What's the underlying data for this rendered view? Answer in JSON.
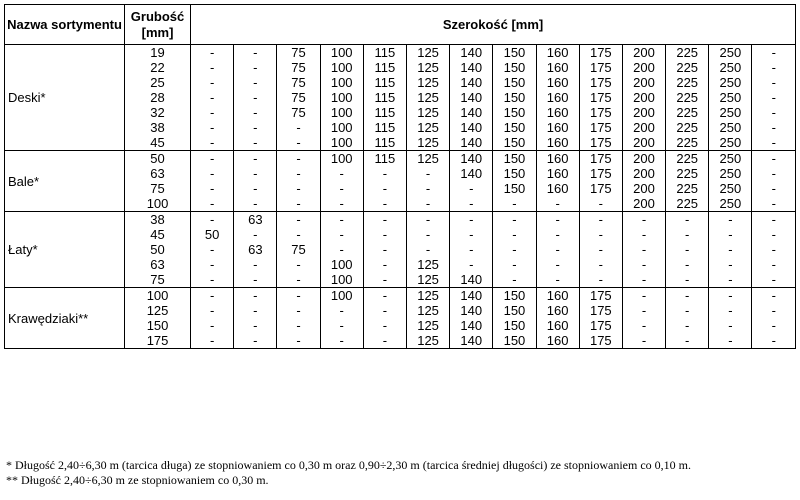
{
  "header": {
    "name_col": "Nazwa sortymentu",
    "thickness_col": "Grubość [mm]",
    "width_col": "Szerokość [mm]"
  },
  "groups": [
    {
      "name": "Deski*",
      "rows": [
        {
          "thickness": "19",
          "widths": [
            "-",
            "-",
            "75",
            "100",
            "115",
            "125",
            "140",
            "150",
            "160",
            "175",
            "200",
            "225",
            "250",
            "-"
          ]
        },
        {
          "thickness": "22",
          "widths": [
            "-",
            "-",
            "75",
            "100",
            "115",
            "125",
            "140",
            "150",
            "160",
            "175",
            "200",
            "225",
            "250",
            "-"
          ]
        },
        {
          "thickness": "25",
          "widths": [
            "-",
            "-",
            "75",
            "100",
            "115",
            "125",
            "140",
            "150",
            "160",
            "175",
            "200",
            "225",
            "250",
            "-"
          ]
        },
        {
          "thickness": "28",
          "widths": [
            "-",
            "-",
            "75",
            "100",
            "115",
            "125",
            "140",
            "150",
            "160",
            "175",
            "200",
            "225",
            "250",
            "-"
          ]
        },
        {
          "thickness": "32",
          "widths": [
            "-",
            "-",
            "75",
            "100",
            "115",
            "125",
            "140",
            "150",
            "160",
            "175",
            "200",
            "225",
            "250",
            "-"
          ]
        },
        {
          "thickness": "38",
          "widths": [
            "-",
            "-",
            "-",
            "100",
            "115",
            "125",
            "140",
            "150",
            "160",
            "175",
            "200",
            "225",
            "250",
            "-"
          ]
        },
        {
          "thickness": "45",
          "widths": [
            "-",
            "-",
            "-",
            "100",
            "115",
            "125",
            "140",
            "150",
            "160",
            "175",
            "200",
            "225",
            "250",
            "-"
          ]
        }
      ]
    },
    {
      "name": "Bale*",
      "rows": [
        {
          "thickness": "50",
          "widths": [
            "-",
            "-",
            "-",
            "100",
            "115",
            "125",
            "140",
            "150",
            "160",
            "175",
            "200",
            "225",
            "250",
            "-"
          ]
        },
        {
          "thickness": "63",
          "widths": [
            "-",
            "-",
            "-",
            "-",
            "-",
            "-",
            "140",
            "150",
            "160",
            "175",
            "200",
            "225",
            "250",
            "-"
          ]
        },
        {
          "thickness": "75",
          "widths": [
            "-",
            "-",
            "-",
            "-",
            "-",
            "-",
            "-",
            "150",
            "160",
            "175",
            "200",
            "225",
            "250",
            "-"
          ]
        },
        {
          "thickness": "100",
          "widths": [
            "-",
            "-",
            "-",
            "-",
            "-",
            "-",
            "-",
            "-",
            "-",
            "-",
            "200",
            "225",
            "250",
            "-"
          ]
        }
      ]
    },
    {
      "name": "Łaty*",
      "rows": [
        {
          "thickness": "38",
          "widths": [
            "-",
            "63",
            "-",
            "-",
            "-",
            "-",
            "-",
            "-",
            "-",
            "-",
            "-",
            "-",
            "-",
            "-"
          ]
        },
        {
          "thickness": "45",
          "widths": [
            "50",
            "-",
            "-",
            "-",
            "-",
            "-",
            "-",
            "-",
            "-",
            "-",
            "-",
            "-",
            "-",
            "-"
          ]
        },
        {
          "thickness": "50",
          "widths": [
            "-",
            "63",
            "75",
            "-",
            "-",
            "-",
            "-",
            "-",
            "-",
            "-",
            "-",
            "-",
            "-",
            "-"
          ]
        },
        {
          "thickness": "63",
          "widths": [
            "-",
            "-",
            "-",
            "100",
            "-",
            "125",
            "-",
            "-",
            "-",
            "-",
            "-",
            "-",
            "-",
            "-"
          ]
        },
        {
          "thickness": "75",
          "widths": [
            "-",
            "-",
            "-",
            "100",
            "-",
            "125",
            "140",
            "-",
            "-",
            "-",
            "-",
            "-",
            "-",
            "-"
          ]
        }
      ]
    },
    {
      "name": "Krawędziaki**",
      "rows": [
        {
          "thickness": "100",
          "widths": [
            "-",
            "-",
            "-",
            "100",
            "-",
            "125",
            "140",
            "150",
            "160",
            "175",
            "-",
            "-",
            "-",
            "-"
          ]
        },
        {
          "thickness": "125",
          "widths": [
            "-",
            "-",
            "-",
            "-",
            "-",
            "125",
            "140",
            "150",
            "160",
            "175",
            "-",
            "-",
            "-",
            "-"
          ]
        },
        {
          "thickness": "150",
          "widths": [
            "-",
            "-",
            "-",
            "-",
            "-",
            "125",
            "140",
            "150",
            "160",
            "175",
            "-",
            "-",
            "-",
            "-"
          ]
        },
        {
          "thickness": "175",
          "widths": [
            "-",
            "-",
            "-",
            "-",
            "-",
            "125",
            "140",
            "150",
            "160",
            "175",
            "-",
            "-",
            "-",
            "-"
          ]
        }
      ]
    }
  ],
  "footnotes": [
    "* Długość 2,40÷6,30 m (tarcica długa) ze stopniowaniem co 0,30 m oraz  0,90÷2,30 m (tarcica średniej długości) ze stopniowaniem co 0,10 m.",
    "** Długość 2,40÷6,30 m ze stopniowaniem co 0,30 m."
  ]
}
